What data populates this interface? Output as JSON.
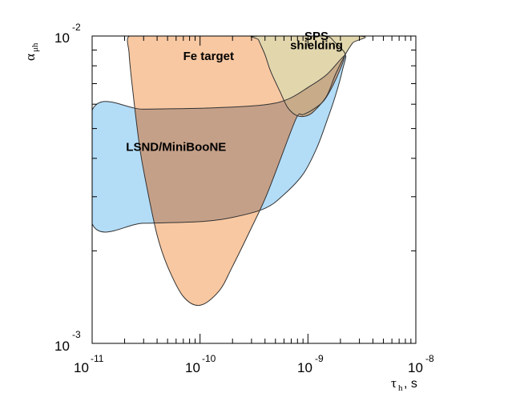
{
  "chart_data": {
    "type": "area",
    "x_scale": "log",
    "y_scale": "log",
    "xlim": [
      1e-11,
      1e-08
    ],
    "ylim": [
      0.001,
      0.01
    ],
    "grid": false,
    "xlabel": {
      "symbol": "τ",
      "sub": "h",
      "suffix": ", s"
    },
    "ylabel": {
      "symbol": "α",
      "sub": "μh"
    },
    "x_ticks": [
      {
        "base": "10",
        "exp": "-11"
      },
      {
        "base": "10",
        "exp": "-10"
      },
      {
        "base": "10",
        "exp": "-9"
      },
      {
        "base": "10",
        "exp": "-8"
      }
    ],
    "y_ticks": [
      {
        "base": "10",
        "exp": "-3"
      },
      {
        "base": "10",
        "exp": "-2"
      }
    ],
    "regions": [
      {
        "name": "LSND/MiniBooNE",
        "color": "#b3dcf7",
        "boundary": [
          [
            1e-11,
            0.00574
          ],
          [
            3e-11,
            0.00578
          ],
          [
            1e-10,
            0.00582
          ],
          [
            3e-10,
            0.00592
          ],
          [
            5e-10,
            0.00605
          ],
          [
            7e-10,
            0.0063
          ],
          [
            1e-09,
            0.0068
          ],
          [
            1.5e-09,
            0.0075
          ],
          [
            2.2e-09,
            0.00865
          ],
          [
            2.1e-09,
            0.0078
          ],
          [
            1.8e-09,
            0.0064
          ],
          [
            1.5e-09,
            0.0053
          ],
          [
            1.2e-09,
            0.0043
          ],
          [
            9e-10,
            0.00355
          ],
          [
            6e-10,
            0.00305
          ],
          [
            4e-10,
            0.00275
          ],
          [
            2e-10,
            0.00257
          ],
          [
            1e-10,
            0.00249
          ],
          [
            3e-11,
            0.00246
          ],
          [
            1e-11,
            0.00245
          ]
        ]
      },
      {
        "name": "Fe target",
        "color": "#f8c8a2",
        "boundary": [
          [
            2.2e-11,
            0.01
          ],
          [
            3.5e-11,
            0.01
          ],
          [
            1e-10,
            0.01
          ],
          [
            5e-10,
            0.01
          ],
          [
            1e-09,
            0.01
          ],
          [
            1.5e-09,
            0.01
          ],
          [
            1.8e-09,
            0.0095
          ],
          [
            2.1e-09,
            0.009
          ],
          [
            2.2e-09,
            0.00865
          ],
          [
            2e-09,
            0.00783
          ],
          [
            1.7e-09,
            0.0069
          ],
          [
            1.4e-09,
            0.00615
          ],
          [
            1.1e-09,
            0.00575
          ],
          [
            9e-10,
            0.00555
          ],
          [
            8e-10,
            0.0055
          ],
          [
            6.5e-10,
            0.0046
          ],
          [
            5e-10,
            0.0036
          ],
          [
            4e-10,
            0.00295
          ],
          [
            3e-10,
            0.00238
          ],
          [
            2e-10,
            0.00178
          ],
          [
            1.5e-10,
            0.00148
          ],
          [
            1e-10,
            0.00133
          ],
          [
            7e-11,
            0.00142
          ],
          [
            5e-11,
            0.00178
          ],
          [
            4e-11,
            0.00225
          ],
          [
            3.2e-11,
            0.00325
          ],
          [
            2.8e-11,
            0.0042
          ],
          [
            2.5e-11,
            0.0057
          ],
          [
            2.3e-11,
            0.0074
          ],
          [
            2.2e-11,
            0.0088
          ]
        ]
      },
      {
        "name": "SPS shielding",
        "color": "#e2d6ad",
        "boundary": [
          [
            3.5e-10,
            0.01
          ],
          [
            3e-09,
            0.01
          ],
          [
            2.6e-09,
            0.0095
          ],
          [
            2.2e-09,
            0.00865
          ],
          [
            1.8e-09,
            0.0075
          ],
          [
            1.5e-09,
            0.0064
          ],
          [
            1.2e-09,
            0.0058
          ],
          [
            1e-09,
            0.00552
          ],
          [
            8e-10,
            0.0055
          ],
          [
            6.5e-10,
            0.00585
          ],
          [
            5.5e-10,
            0.0066
          ],
          [
            4.5e-10,
            0.0077
          ],
          [
            4e-10,
            0.0087
          ],
          [
            3.5e-10,
            0.0097
          ]
        ]
      }
    ],
    "overlap_color": "#c5a088",
    "overlap_sps_color": "#c8ac8a",
    "labels": [
      {
        "text": "Fe target",
        "x": 1.2e-10,
        "y": 0.00835
      },
      {
        "text": "SPS",
        "x": 1.2e-09,
        "y": 0.0097
      },
      {
        "text": "shielding",
        "x": 1.2e-09,
        "y": 0.00905
      },
      {
        "text": "LSND/MiniBooNE",
        "x": 6e-11,
        "y": 0.00423
      }
    ]
  }
}
